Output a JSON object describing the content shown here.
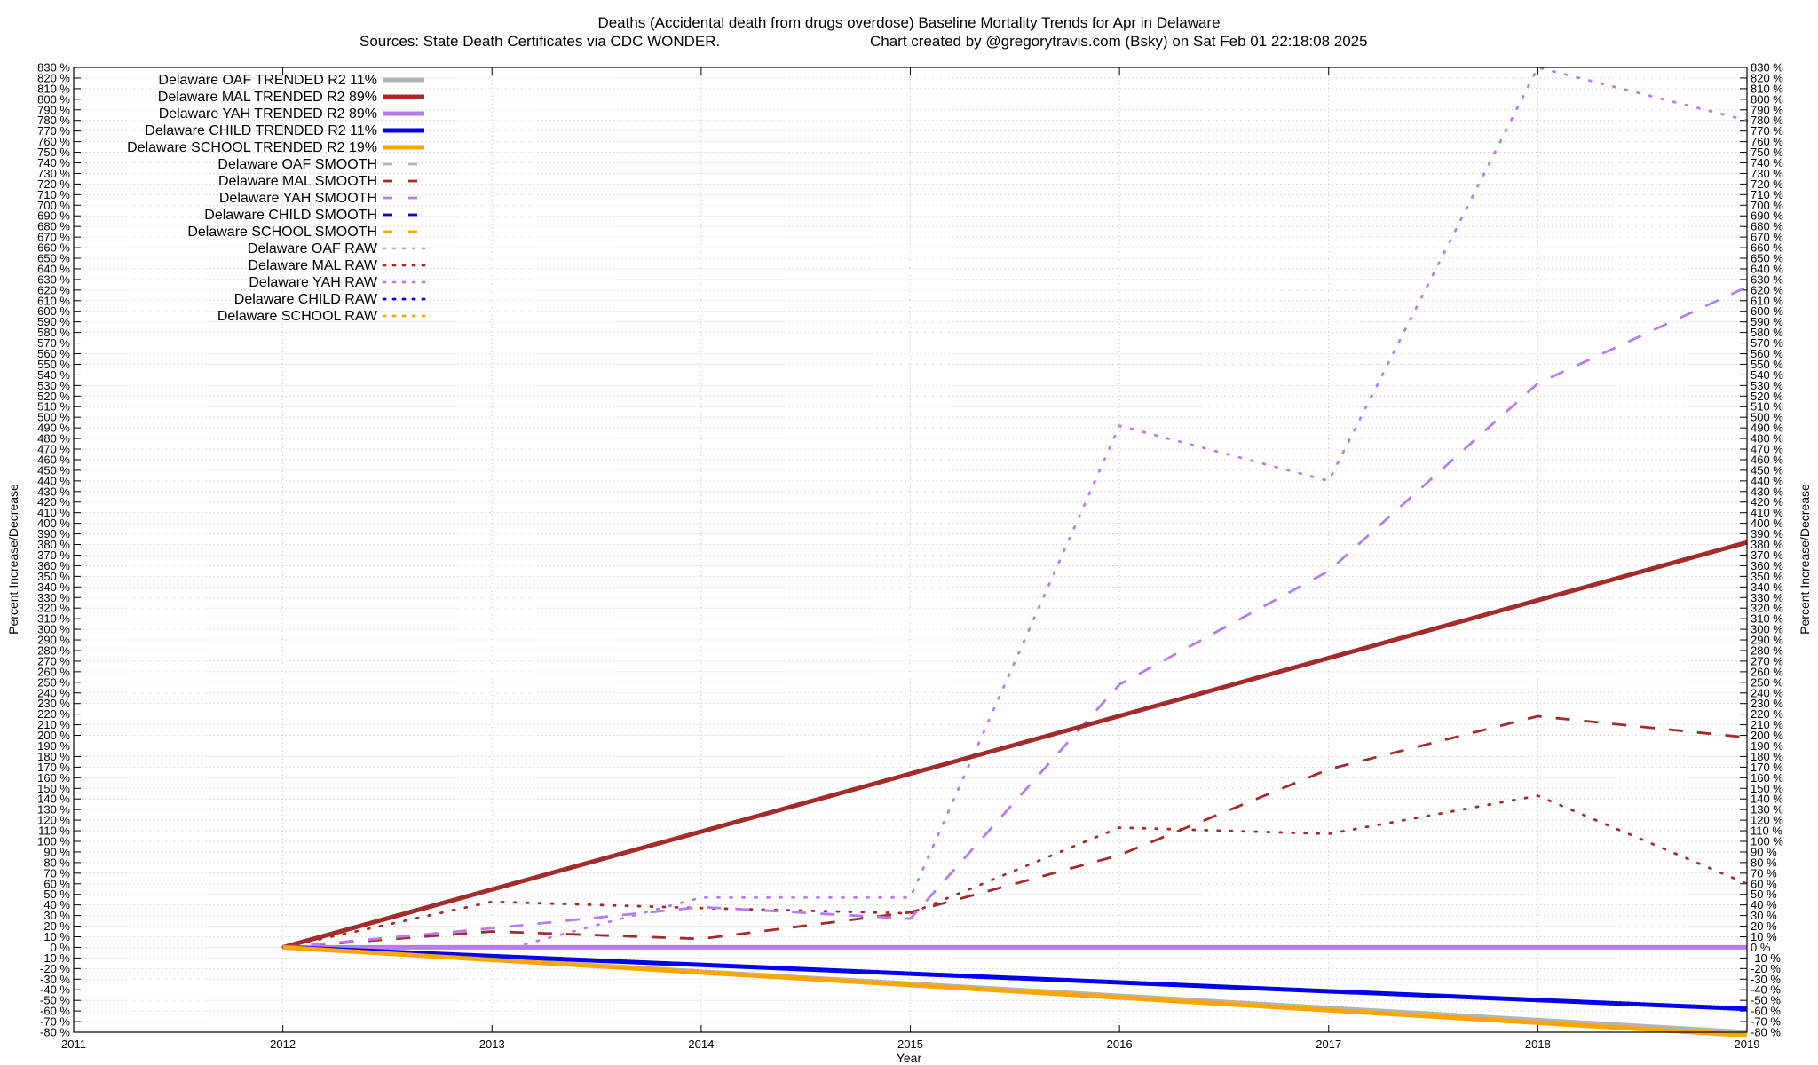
{
  "chart_data": {
    "type": "line",
    "title": "Deaths (Accidental death from drugs overdose)  Baseline Mortality Trends for Apr in Delaware",
    "subtitle_left": "Sources: State Death Certificates via CDC WONDER.",
    "subtitle_right": "Chart created by @gregorytravis.com (Bsky) on Sat Feb 01 22:18:08 2025",
    "xlabel": "Year",
    "ylabel_left": "Percent Increase/Decrease",
    "ylabel_right": "Percent Increase/Decrease",
    "y_tick_suffix": " %",
    "xlim": [
      2011,
      2019
    ],
    "ylim": [
      -80,
      830
    ],
    "x_ticks": [
      2011,
      2012,
      2013,
      2014,
      2015,
      2016,
      2017,
      2018,
      2019
    ],
    "y_tick_step": 10,
    "grid": true,
    "legend_position": "top-left",
    "series": [
      {
        "name": "Delaware OAF TRENDED R2  11%",
        "style": "solid-thick",
        "color": "#b4b4b4",
        "x": [
          2012,
          2019
        ],
        "y": [
          0,
          -80
        ]
      },
      {
        "name": "Delaware MAL TRENDED R2  89%",
        "style": "solid-thick",
        "color": "#a52a2a",
        "x": [
          2012,
          2019
        ],
        "y": [
          0,
          382
        ]
      },
      {
        "name": "Delaware YAH TRENDED R2  89%",
        "style": "solid-thick",
        "color": "#b77cf0",
        "x": [
          2012,
          2019
        ],
        "y": [
          0,
          0
        ]
      },
      {
        "name": "Delaware CHILD TRENDED R2  11%",
        "style": "solid-thick",
        "color": "#0000ee",
        "x": [
          2012,
          2019
        ],
        "y": [
          0,
          -58
        ]
      },
      {
        "name": "Delaware SCHOOL TRENDED R2  19%",
        "style": "solid-thick",
        "color": "#ffa500",
        "x": [
          2012,
          2019
        ],
        "y": [
          0,
          -83
        ]
      },
      {
        "name": "Delaware OAF SMOOTH",
        "style": "dashed",
        "color": "#b4b4b4",
        "x": [],
        "y": []
      },
      {
        "name": "Delaware MAL SMOOTH",
        "style": "dashed",
        "color": "#a52a2a",
        "x": [
          2012,
          2013,
          2014,
          2015,
          2016,
          2017,
          2018,
          2019
        ],
        "y": [
          0,
          15,
          8,
          33,
          87,
          168,
          218,
          198
        ]
      },
      {
        "name": "Delaware YAH SMOOTH",
        "style": "dashed",
        "color": "#b77cf0",
        "x": [
          2012,
          2013,
          2014,
          2015,
          2016,
          2017,
          2018,
          2019
        ],
        "y": [
          0,
          18,
          38,
          27,
          248,
          355,
          532,
          623
        ]
      },
      {
        "name": "Delaware CHILD SMOOTH",
        "style": "dashed",
        "color": "#0000ee",
        "x": [],
        "y": []
      },
      {
        "name": "Delaware SCHOOL SMOOTH",
        "style": "dashed",
        "color": "#ffa500",
        "x": [],
        "y": []
      },
      {
        "name": "Delaware OAF RAW",
        "style": "dotted",
        "color": "#b4b4b4",
        "x": [],
        "y": []
      },
      {
        "name": "Delaware MAL RAW",
        "style": "dotted",
        "color": "#a52a2a",
        "x": [
          2012,
          2013,
          2014,
          2015,
          2016,
          2017,
          2018,
          2019
        ],
        "y": [
          0,
          43,
          37,
          32,
          113,
          107,
          143,
          60
        ]
      },
      {
        "name": "Delaware YAH RAW",
        "style": "dotted",
        "color": "#b77cf0",
        "x": [
          2013.1,
          2014,
          2015,
          2016,
          2017,
          2018,
          2019
        ],
        "y": [
          0,
          47,
          47,
          492,
          440,
          830,
          780
        ]
      },
      {
        "name": "Delaware CHILD RAW",
        "style": "dotted",
        "color": "#0000ee",
        "x": [],
        "y": []
      },
      {
        "name": "Delaware SCHOOL RAW",
        "style": "dotted",
        "color": "#ffa500",
        "x": [],
        "y": []
      }
    ]
  }
}
